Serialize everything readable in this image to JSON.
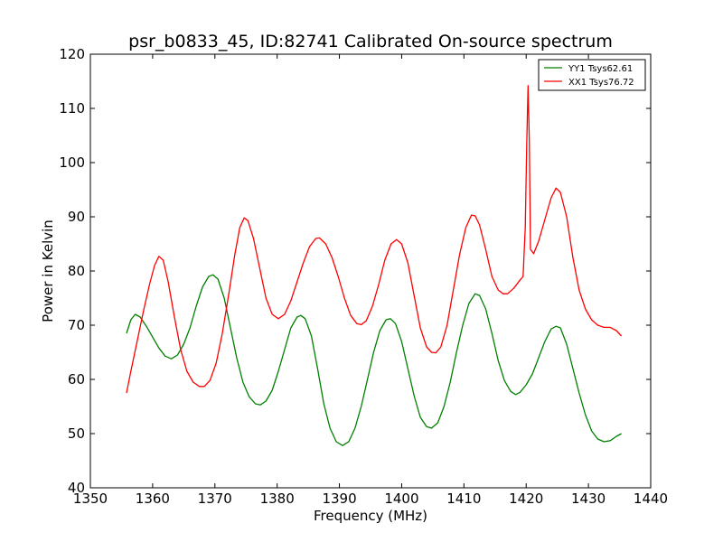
{
  "chart_data": {
    "type": "line",
    "title": "psr_b0833_45, ID:82741 Calibrated On-source spectrum",
    "xlabel": "Frequency (MHz)",
    "ylabel": "Power in Kelvin",
    "xlim": [
      1350,
      1440
    ],
    "ylim": [
      40,
      120
    ],
    "xticks": [
      1350,
      1360,
      1370,
      1380,
      1390,
      1400,
      1410,
      1420,
      1430,
      1440
    ],
    "yticks": [
      40,
      50,
      60,
      70,
      80,
      90,
      100,
      110,
      120
    ],
    "grid": false,
    "legend_position": "top-right",
    "series": [
      {
        "name": "YY1 Tsys62.61",
        "color": "#008000",
        "points": [
          [
            1355.8,
            68.5
          ],
          [
            1356.5,
            71.0
          ],
          [
            1357.2,
            72.0
          ],
          [
            1358.0,
            71.5
          ],
          [
            1359.0,
            69.8
          ],
          [
            1360.0,
            67.8
          ],
          [
            1361.0,
            65.8
          ],
          [
            1362.0,
            64.3
          ],
          [
            1363.0,
            63.8
          ],
          [
            1364.0,
            64.5
          ],
          [
            1365.0,
            66.5
          ],
          [
            1366.0,
            69.5
          ],
          [
            1367.0,
            73.5
          ],
          [
            1368.0,
            77.0
          ],
          [
            1369.0,
            79.0
          ],
          [
            1369.7,
            79.3
          ],
          [
            1370.5,
            78.5
          ],
          [
            1371.5,
            75.0
          ],
          [
            1372.5,
            69.5
          ],
          [
            1373.5,
            64.0
          ],
          [
            1374.5,
            59.5
          ],
          [
            1375.5,
            56.8
          ],
          [
            1376.5,
            55.5
          ],
          [
            1377.3,
            55.3
          ],
          [
            1378.2,
            56.0
          ],
          [
            1379.2,
            58.0
          ],
          [
            1380.2,
            61.5
          ],
          [
            1381.2,
            65.5
          ],
          [
            1382.2,
            69.5
          ],
          [
            1383.2,
            71.5
          ],
          [
            1383.8,
            71.8
          ],
          [
            1384.5,
            71.2
          ],
          [
            1385.5,
            68.0
          ],
          [
            1386.5,
            62.0
          ],
          [
            1387.5,
            55.5
          ],
          [
            1388.5,
            51.0
          ],
          [
            1389.5,
            48.5
          ],
          [
            1390.5,
            47.8
          ],
          [
            1391.5,
            48.5
          ],
          [
            1392.5,
            51.0
          ],
          [
            1393.5,
            55.0
          ],
          [
            1394.5,
            60.0
          ],
          [
            1395.5,
            65.0
          ],
          [
            1396.5,
            69.0
          ],
          [
            1397.5,
            71.0
          ],
          [
            1398.2,
            71.2
          ],
          [
            1399.0,
            70.3
          ],
          [
            1400.0,
            67.0
          ],
          [
            1401.0,
            62.0
          ],
          [
            1402.0,
            57.0
          ],
          [
            1403.0,
            53.0
          ],
          [
            1404.0,
            51.3
          ],
          [
            1404.8,
            51.0
          ],
          [
            1405.8,
            52.0
          ],
          [
            1406.8,
            55.0
          ],
          [
            1407.8,
            59.5
          ],
          [
            1408.8,
            65.0
          ],
          [
            1409.8,
            70.0
          ],
          [
            1410.8,
            74.0
          ],
          [
            1411.8,
            75.8
          ],
          [
            1412.5,
            75.5
          ],
          [
            1413.5,
            73.0
          ],
          [
            1414.5,
            68.5
          ],
          [
            1415.5,
            63.5
          ],
          [
            1416.5,
            59.8
          ],
          [
            1417.5,
            57.8
          ],
          [
            1418.3,
            57.2
          ],
          [
            1419.0,
            57.6
          ],
          [
            1420.0,
            59.0
          ],
          [
            1421.0,
            61.0
          ],
          [
            1422.0,
            64.0
          ],
          [
            1423.0,
            67.0
          ],
          [
            1424.0,
            69.3
          ],
          [
            1424.8,
            69.8
          ],
          [
            1425.5,
            69.5
          ],
          [
            1426.5,
            66.5
          ],
          [
            1427.5,
            62.0
          ],
          [
            1428.5,
            57.5
          ],
          [
            1429.5,
            53.5
          ],
          [
            1430.5,
            50.5
          ],
          [
            1431.5,
            49.0
          ],
          [
            1432.5,
            48.5
          ],
          [
            1433.5,
            48.7
          ],
          [
            1434.5,
            49.5
          ],
          [
            1435.3,
            50.0
          ]
        ]
      },
      {
        "name": "XX1 Tsys76.72",
        "color": "#ff0000",
        "points": [
          [
            1355.8,
            57.5
          ],
          [
            1356.5,
            61.5
          ],
          [
            1357.5,
            67.0
          ],
          [
            1358.5,
            72.5
          ],
          [
            1359.5,
            77.5
          ],
          [
            1360.3,
            81.0
          ],
          [
            1361.0,
            82.7
          ],
          [
            1361.7,
            82.0
          ],
          [
            1362.5,
            78.0
          ],
          [
            1363.5,
            71.5
          ],
          [
            1364.5,
            65.5
          ],
          [
            1365.5,
            61.5
          ],
          [
            1366.5,
            59.5
          ],
          [
            1367.5,
            58.7
          ],
          [
            1368.3,
            58.7
          ],
          [
            1369.2,
            59.8
          ],
          [
            1370.2,
            63.0
          ],
          [
            1371.2,
            68.5
          ],
          [
            1372.2,
            75.5
          ],
          [
            1373.2,
            83.0
          ],
          [
            1374.0,
            88.0
          ],
          [
            1374.7,
            89.8
          ],
          [
            1375.3,
            89.3
          ],
          [
            1376.2,
            86.0
          ],
          [
            1377.2,
            80.5
          ],
          [
            1378.2,
            75.0
          ],
          [
            1379.2,
            72.0
          ],
          [
            1380.2,
            71.2
          ],
          [
            1381.2,
            72.0
          ],
          [
            1382.2,
            74.5
          ],
          [
            1383.2,
            78.0
          ],
          [
            1384.2,
            81.5
          ],
          [
            1385.2,
            84.5
          ],
          [
            1386.2,
            86.0
          ],
          [
            1386.8,
            86.1
          ],
          [
            1387.8,
            85.0
          ],
          [
            1388.8,
            82.5
          ],
          [
            1389.8,
            79.0
          ],
          [
            1390.8,
            75.0
          ],
          [
            1391.8,
            71.8
          ],
          [
            1392.8,
            70.3
          ],
          [
            1393.5,
            70.1
          ],
          [
            1394.3,
            70.8
          ],
          [
            1395.3,
            73.5
          ],
          [
            1396.3,
            77.5
          ],
          [
            1397.3,
            82.0
          ],
          [
            1398.3,
            85.0
          ],
          [
            1399.2,
            85.8
          ],
          [
            1400.0,
            85.0
          ],
          [
            1401.0,
            81.5
          ],
          [
            1402.0,
            75.5
          ],
          [
            1403.0,
            69.5
          ],
          [
            1404.0,
            66.0
          ],
          [
            1404.8,
            65.0
          ],
          [
            1405.5,
            64.9
          ],
          [
            1406.3,
            66.0
          ],
          [
            1407.3,
            70.0
          ],
          [
            1408.3,
            76.5
          ],
          [
            1409.3,
            83.0
          ],
          [
            1410.3,
            88.0
          ],
          [
            1411.2,
            90.3
          ],
          [
            1411.8,
            90.2
          ],
          [
            1412.5,
            88.5
          ],
          [
            1413.5,
            84.0
          ],
          [
            1414.5,
            79.0
          ],
          [
            1415.5,
            76.5
          ],
          [
            1416.3,
            75.8
          ],
          [
            1417.0,
            75.8
          ],
          [
            1418.0,
            76.8
          ],
          [
            1419.0,
            78.3
          ],
          [
            1419.5,
            79.0
          ],
          [
            1419.85,
            88.0
          ],
          [
            1420.1,
            104.0
          ],
          [
            1420.3,
            114.2
          ],
          [
            1420.5,
            104.0
          ],
          [
            1420.7,
            84.0
          ],
          [
            1421.2,
            83.2
          ],
          [
            1422.0,
            85.5
          ],
          [
            1423.0,
            89.5
          ],
          [
            1424.0,
            93.5
          ],
          [
            1424.8,
            95.3
          ],
          [
            1425.5,
            94.5
          ],
          [
            1426.5,
            90.0
          ],
          [
            1427.5,
            82.5
          ],
          [
            1428.5,
            76.5
          ],
          [
            1429.5,
            73.0
          ],
          [
            1430.5,
            71.0
          ],
          [
            1431.5,
            70.0
          ],
          [
            1432.5,
            69.6
          ],
          [
            1433.5,
            69.6
          ],
          [
            1434.5,
            69.0
          ],
          [
            1435.3,
            68.0
          ]
        ]
      }
    ]
  }
}
